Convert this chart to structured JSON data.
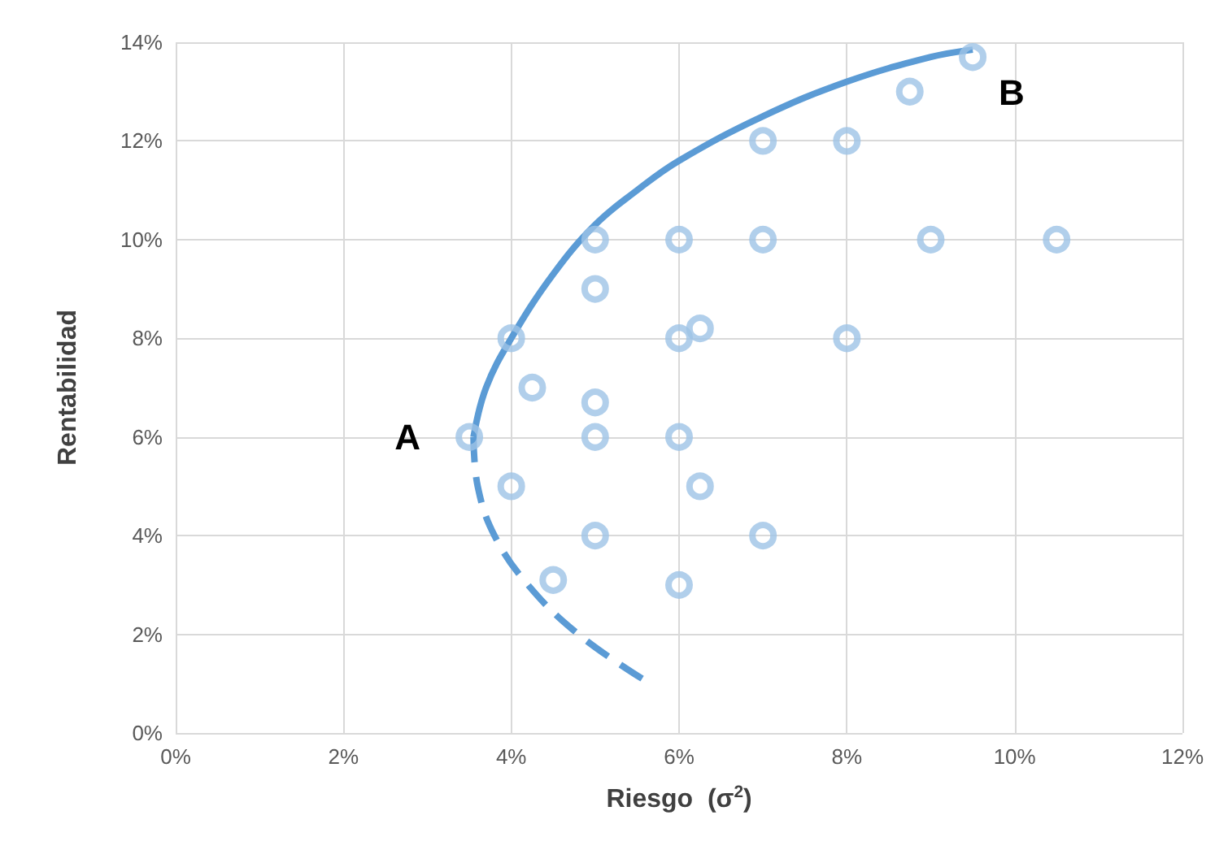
{
  "chart_data": {
    "type": "scatter",
    "xlabel": "Riesgo  (σ$^{2}$)",
    "ylabel": "Rentabilidad",
    "xlim": [
      0,
      12
    ],
    "xticks": [
      {
        "value": 0,
        "label": "0%"
      },
      {
        "value": 2,
        "label": "2%"
      },
      {
        "value": 4,
        "label": "4%"
      },
      {
        "value": 6,
        "label": "6%"
      },
      {
        "value": 8,
        "label": "8%"
      },
      {
        "value": 10,
        "label": "10%"
      },
      {
        "value": 12,
        "label": "12%"
      }
    ],
    "ylim": [
      0,
      14
    ],
    "yticks": [
      {
        "value": 0,
        "label": "0%"
      },
      {
        "value": 2,
        "label": "2%"
      },
      {
        "value": 4,
        "label": "4%"
      },
      {
        "value": 6,
        "label": "6%"
      },
      {
        "value": 8,
        "label": "8%"
      },
      {
        "value": 10,
        "label": "10%"
      },
      {
        "value": 12,
        "label": "12%"
      },
      {
        "value": 14,
        "label": "14%"
      }
    ],
    "grid": true,
    "marker": "circle",
    "series": [
      {
        "type": "scatter",
        "color": "#9dc3e6",
        "x": [
          3.5,
          4,
          4.25,
          4,
          4.5,
          5,
          5,
          5,
          5,
          5,
          6,
          6,
          6,
          6,
          6.25,
          6.25,
          7,
          7,
          7,
          8,
          8,
          8.75,
          9.5,
          9,
          10.5
        ],
        "values": [
          6,
          8,
          7,
          5,
          3.1,
          10,
          9,
          6.7,
          6,
          4,
          10,
          8,
          6,
          3,
          8.2,
          5,
          12,
          10,
          4,
          12,
          8,
          13,
          13.7,
          10,
          10
        ]
      },
      {
        "type": "line",
        "color": "#5b9bd5",
        "line_style": "solid",
        "marker": "none",
        "x": [
          3.55,
          3.7,
          4,
          4.5,
          5,
          5.5,
          6,
          7,
          8,
          9,
          9.5
        ],
        "values": [
          6,
          7,
          8,
          9.3,
          10.3,
          11,
          11.6,
          12.5,
          13.2,
          13.7,
          13.85
        ]
      },
      {
        "type": "line",
        "color": "#5b9bd5",
        "line_style": "dashed",
        "marker": "none",
        "x": [
          5.56,
          4.8,
          4.2,
          3.8,
          3.6,
          3.55
        ],
        "values": [
          1.1,
          2,
          3,
          4,
          5,
          6
        ]
      }
    ],
    "annotations": [
      {
        "text": "A",
        "x": 3.5,
        "y": 6
      },
      {
        "text": "B",
        "x": 9.5,
        "y": 13.7
      }
    ]
  }
}
